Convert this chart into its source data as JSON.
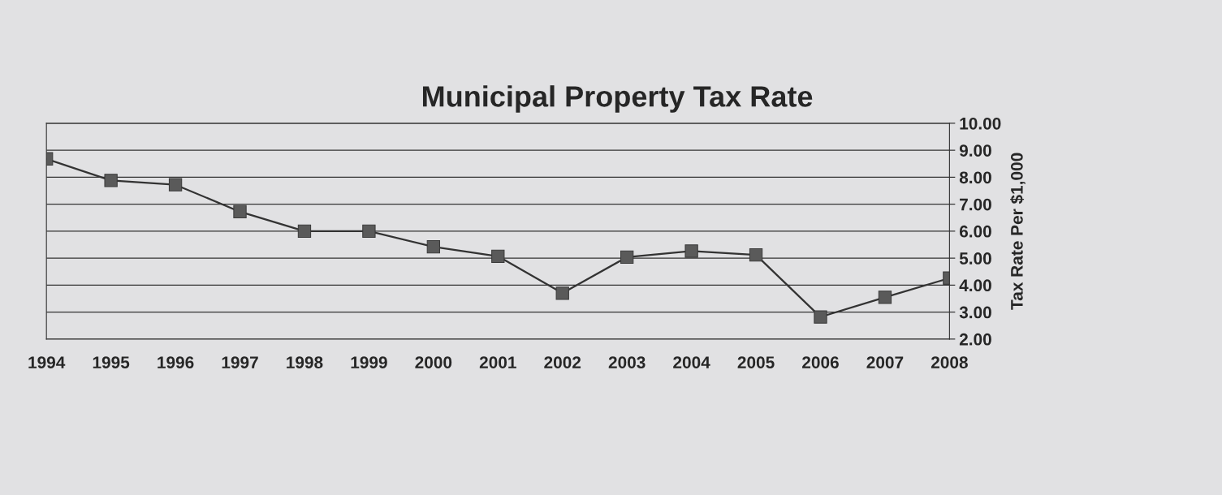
{
  "chart_data": {
    "type": "line",
    "title": "Municipal Property Tax Rate",
    "ylabel": "Tax Rate Per $1,000",
    "categories": [
      "1994",
      "1995",
      "1996",
      "1997",
      "1998",
      "1999",
      "2000",
      "2001",
      "2002",
      "2003",
      "2004",
      "2005",
      "2006",
      "2007",
      "2008"
    ],
    "series": [
      {
        "color": "#5a5a5a",
        "values": [
          8.68,
          7.88,
          7.72,
          6.72,
          6.0,
          6.0,
          5.42,
          5.07,
          3.7,
          5.04,
          5.26,
          5.12,
          2.82,
          3.55,
          4.26
        ]
      }
    ],
    "ylim": [
      2,
      10
    ],
    "yticks": [
      {
        "value": 2,
        "label": "2.00"
      },
      {
        "value": 3,
        "label": "3.00"
      },
      {
        "value": 4,
        "label": "4.00"
      },
      {
        "value": 5,
        "label": "5.00"
      },
      {
        "value": 6,
        "label": "6.00"
      },
      {
        "value": 7,
        "label": "7.00"
      },
      {
        "value": 8,
        "label": "8.00"
      },
      {
        "value": 9,
        "label": "9.00"
      },
      {
        "value": 10,
        "label": "10.00"
      }
    ],
    "grid": "y",
    "marker": "square",
    "line_style": "solid",
    "legend": false
  }
}
